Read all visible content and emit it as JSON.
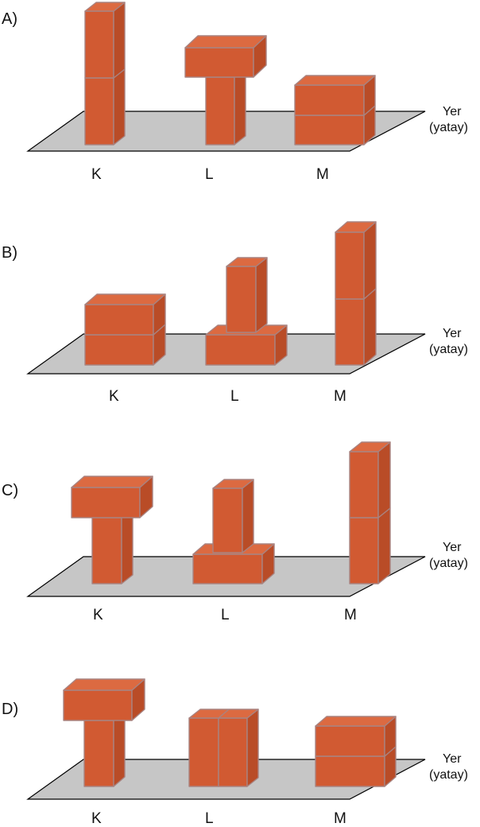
{
  "options": [
    {
      "letter": "A)",
      "items": [
        "K",
        "L",
        "M"
      ],
      "ground_label": [
        "Yer",
        "(yatay)"
      ]
    },
    {
      "letter": "B)",
      "items": [
        "K",
        "L",
        "M"
      ],
      "ground_label": [
        "Yer",
        "(yatay)"
      ]
    },
    {
      "letter": "C)",
      "items": [
        "K",
        "L",
        "M"
      ],
      "ground_label": [
        "Yer",
        "(yatay)"
      ]
    },
    {
      "letter": "D)",
      "items": [
        "K",
        "L",
        "M"
      ],
      "ground_label": [
        "Yer",
        "(yatay)"
      ]
    }
  ],
  "colors": {
    "brick": "#d15a32",
    "brick_top": "#dc6a41",
    "brick_side": "#b94c27",
    "edge": "#a98380",
    "ground": "#c6c6c6"
  }
}
